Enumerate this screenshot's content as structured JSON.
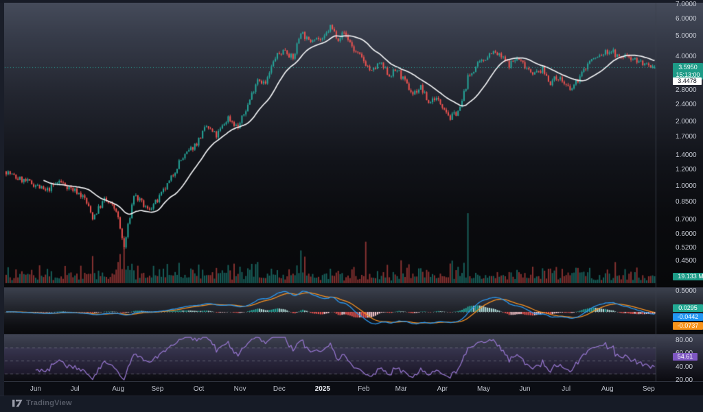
{
  "watermark": {
    "brand": "TradingView"
  },
  "price_axis": {
    "ticks": [
      "7.0000",
      "6.0000",
      "5.0000",
      "4.0000",
      "2.8000",
      "2.4000",
      "2.0000",
      "1.7000",
      "1.4000",
      "1.2000",
      "1.0000",
      "0.8500",
      "0.7000",
      "0.6000",
      "0.5200",
      "0.4500"
    ],
    "last_price": "3.5950",
    "countdown": "15:13:00",
    "ma_value": "3.4478",
    "volume_value": "19.133 M"
  },
  "macd_panel": {
    "top_tick": "0.5000",
    "histogram_value": "0.0295",
    "macd_value": "-0.0442",
    "signal_value": "-0.0737"
  },
  "rsi_panel": {
    "ticks": [
      "80.00",
      "60.00",
      "40.00",
      "20.00"
    ],
    "value": "54.61",
    "band_levels": [
      70,
      50,
      30
    ]
  },
  "time_axis": {
    "labels": [
      {
        "text": "Jun",
        "bar": 15
      },
      {
        "text": "Jul",
        "bar": 35
      },
      {
        "text": "Aug",
        "bar": 57
      },
      {
        "text": "Sep",
        "bar": 77
      },
      {
        "text": "Oct",
        "bar": 98
      },
      {
        "text": "Nov",
        "bar": 119
      },
      {
        "text": "Dec",
        "bar": 139
      },
      {
        "text": "2025",
        "bar": 161,
        "year": true
      },
      {
        "text": "Feb",
        "bar": 182
      },
      {
        "text": "Mar",
        "bar": 201
      },
      {
        "text": "Apr",
        "bar": 222
      },
      {
        "text": "May",
        "bar": 243
      },
      {
        "text": "Jun",
        "bar": 264
      },
      {
        "text": "Jul",
        "bar": 285
      },
      {
        "text": "Aug",
        "bar": 306
      },
      {
        "text": "Sep",
        "bar": 327
      }
    ]
  },
  "colors": {
    "up": "#26a69a",
    "down": "#ef5350",
    "ma_line": "#f0f1f3",
    "macd_line": "#2b98f0",
    "signal_line": "#f59123",
    "hist_pos": "#26a69a",
    "hist_pos_weak": "#b2dfdb",
    "hist_neg": "#ef5350",
    "hist_neg_weak": "#ffcdd2",
    "rsi_line": "#9575cd",
    "price_line": "#26a69a",
    "price_badge_bg": "#1d9b87",
    "volume_badge_bg": "#1d9b87",
    "hist_badge_bg": "#22ab94",
    "macd_badge_bg": "#2196f3",
    "signal_badge_bg": "#f7931a",
    "rsi_badge_bg": "#7e57c2"
  },
  "chart_data": {
    "type": "candlestick",
    "scale": "log",
    "bars": 331,
    "last_close": 3.595,
    "sma_last": 3.4478,
    "rsi_last": 54.61,
    "macd_last": {
      "macd": -0.0442,
      "signal": -0.0737,
      "histogram": 0.0295
    },
    "indicators": {
      "sma_period": 20,
      "macd_params": [
        12,
        26,
        9
      ],
      "rsi_period": 14
    },
    "price_anchors": [
      [
        0,
        1.18
      ],
      [
        5,
        1.1
      ],
      [
        10,
        1.06
      ],
      [
        15,
        1.02
      ],
      [
        20,
        0.95
      ],
      [
        27,
        1.06
      ],
      [
        33,
        0.98
      ],
      [
        36,
        0.95
      ],
      [
        40,
        0.88
      ],
      [
        44,
        0.72
      ],
      [
        50,
        0.87
      ],
      [
        56,
        0.78
      ],
      [
        60,
        0.52
      ],
      [
        65,
        0.92
      ],
      [
        72,
        0.78
      ],
      [
        77,
        0.86
      ],
      [
        83,
        1.05
      ],
      [
        88,
        1.3
      ],
      [
        97,
        1.6
      ],
      [
        102,
        1.9
      ],
      [
        107,
        1.72
      ],
      [
        113,
        2.1
      ],
      [
        118,
        1.88
      ],
      [
        123,
        2.4
      ],
      [
        128,
        3.2
      ],
      [
        132,
        3.0
      ],
      [
        137,
        4.0
      ],
      [
        142,
        4.35
      ],
      [
        146,
        3.9
      ],
      [
        150,
        5.3
      ],
      [
        154,
        4.7
      ],
      [
        157,
        5.0
      ],
      [
        161,
        4.75
      ],
      [
        165,
        5.55
      ],
      [
        169,
        4.9
      ],
      [
        172,
        5.2
      ],
      [
        175,
        4.7
      ],
      [
        177,
        4.3
      ],
      [
        182,
        3.85
      ],
      [
        186,
        3.4
      ],
      [
        190,
        3.75
      ],
      [
        195,
        3.3
      ],
      [
        199,
        3.5
      ],
      [
        204,
        2.95
      ],
      [
        207,
        2.7
      ],
      [
        211,
        2.9
      ],
      [
        215,
        2.45
      ],
      [
        218,
        2.6
      ],
      [
        223,
        2.35
      ],
      [
        226,
        2.08
      ],
      [
        231,
        2.3
      ],
      [
        235,
        3.2
      ],
      [
        239,
        3.6
      ],
      [
        242,
        3.8
      ],
      [
        247,
        4.25
      ],
      [
        252,
        4.0
      ],
      [
        256,
        3.7
      ],
      [
        260,
        3.95
      ],
      [
        265,
        3.6
      ],
      [
        269,
        3.35
      ],
      [
        273,
        3.5
      ],
      [
        277,
        3.05
      ],
      [
        281,
        3.25
      ],
      [
        285,
        2.95
      ],
      [
        287,
        2.78
      ],
      [
        293,
        3.35
      ],
      [
        297,
        3.85
      ],
      [
        301,
        4.0
      ],
      [
        305,
        4.2
      ],
      [
        308,
        4.3
      ],
      [
        312,
        3.95
      ],
      [
        316,
        4.1
      ],
      [
        320,
        3.9
      ],
      [
        324,
        3.75
      ],
      [
        328,
        3.5
      ],
      [
        330,
        3.595
      ]
    ],
    "volume_spikes": [
      [
        60,
        1.6
      ],
      [
        123,
        1.4
      ],
      [
        128,
        1.8
      ],
      [
        137,
        1.5
      ],
      [
        150,
        1.7
      ],
      [
        157,
        1.4
      ],
      [
        165,
        1.5
      ],
      [
        183,
        2.6
      ],
      [
        190,
        1.3
      ],
      [
        199,
        1.6
      ],
      [
        204,
        1.4
      ],
      [
        235,
        1.6
      ],
      [
        247,
        1.4
      ],
      [
        268,
        1.2
      ],
      [
        293,
        1.5
      ],
      [
        305,
        1.3
      ]
    ]
  }
}
